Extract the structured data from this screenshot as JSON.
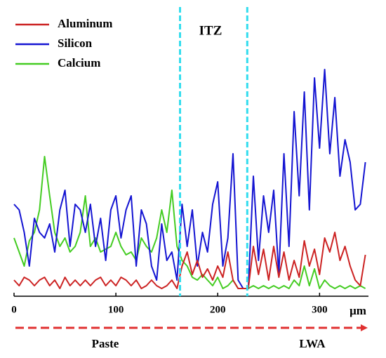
{
  "chart_data": {
    "type": "line",
    "x": [
      0,
      5,
      10,
      15,
      20,
      25,
      30,
      35,
      40,
      45,
      50,
      55,
      60,
      65,
      70,
      75,
      80,
      85,
      90,
      95,
      100,
      105,
      110,
      115,
      120,
      125,
      130,
      135,
      140,
      145,
      150,
      155,
      160,
      165,
      170,
      175,
      180,
      185,
      190,
      195,
      200,
      205,
      210,
      215,
      220,
      225,
      230,
      235,
      240,
      245,
      250,
      255,
      260,
      265,
      270,
      275,
      280,
      285,
      290,
      295,
      300,
      305,
      310,
      315,
      320,
      325,
      330,
      335,
      340,
      345
    ],
    "series": [
      {
        "name": "Aluminum",
        "color": "#cc2222",
        "values": [
          4,
          2,
          5,
          4,
          2,
          4,
          5,
          2,
          4,
          1,
          5,
          2,
          4,
          2,
          4,
          2,
          4,
          5,
          2,
          4,
          2,
          5,
          4,
          2,
          4,
          1,
          2,
          4,
          2,
          1,
          2,
          4,
          1,
          9,
          14,
          6,
          11,
          5,
          8,
          4,
          9,
          5,
          14,
          4,
          1,
          1,
          1,
          16,
          6,
          15,
          4,
          16,
          5,
          14,
          4,
          11,
          5,
          18,
          9,
          15,
          6,
          19,
          14,
          21,
          11,
          16,
          9,
          4,
          2,
          13
        ]
      },
      {
        "name": "Silicon",
        "color": "#1414d2",
        "values": [
          31,
          29,
          21,
          9,
          26,
          21,
          19,
          24,
          14,
          29,
          36,
          16,
          31,
          29,
          21,
          31,
          16,
          26,
          11,
          29,
          34,
          19,
          29,
          34,
          9,
          29,
          24,
          9,
          4,
          24,
          11,
          14,
          4,
          31,
          16,
          29,
          9,
          21,
          14,
          31,
          39,
          9,
          19,
          49,
          4,
          1,
          1,
          41,
          11,
          34,
          21,
          36,
          6,
          49,
          16,
          64,
          34,
          71,
          29,
          76,
          51,
          79,
          49,
          69,
          41,
          54,
          46,
          29,
          31,
          46
        ]
      },
      {
        "name": "Calcium",
        "color": "#44cc22",
        "values": [
          19,
          14,
          9,
          18,
          21,
          29,
          48,
          34,
          21,
          16,
          19,
          14,
          16,
          21,
          34,
          16,
          19,
          14,
          15,
          16,
          21,
          16,
          13,
          14,
          11,
          19,
          16,
          14,
          19,
          29,
          21,
          36,
          16,
          11,
          9,
          5,
          4,
          6,
          4,
          2,
          5,
          1,
          2,
          4,
          1,
          1,
          1,
          2,
          1,
          2,
          1,
          2,
          1,
          2,
          1,
          4,
          2,
          9,
          2,
          8,
          1,
          4,
          2,
          1,
          2,
          1,
          2,
          1,
          2,
          1
        ]
      }
    ],
    "xlim": [
      0,
      348
    ],
    "xticks": [
      0,
      100,
      200,
      300
    ],
    "ylim": [
      0,
      100
    ],
    "xlabel": "μm",
    "vlines": [
      163,
      229
    ],
    "annotations": [
      "ITZ",
      "Paste",
      "LWA"
    ],
    "legend": "upper left"
  }
}
